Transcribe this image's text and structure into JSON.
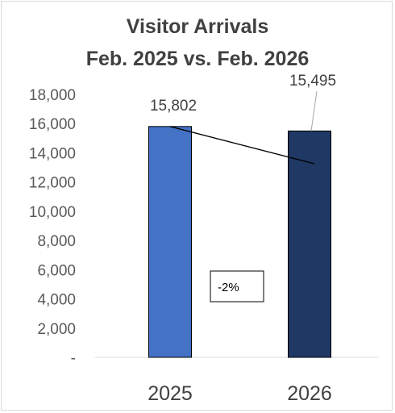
{
  "chart_data": {
    "type": "bar",
    "title": [
      "Visitor Arrivals",
      "Feb. 2025 vs. Feb. 2026"
    ],
    "categories": [
      "2025",
      "2026"
    ],
    "values": [
      15802,
      15495
    ],
    "data_labels": [
      "15,802",
      "15,495"
    ],
    "ylim": [
      0,
      18000
    ],
    "yticks": [
      0,
      2000,
      4000,
      6000,
      8000,
      10000,
      12000,
      14000,
      16000,
      18000
    ],
    "ytick_labels": [
      "-",
      "2,000",
      "4,000",
      "6,000",
      "8,000",
      "10,000",
      "12,000",
      "14,000",
      "16,000",
      "18,000"
    ],
    "bar_colors": [
      "#4472c4",
      "#1f3864"
    ],
    "bar_border": "#000000",
    "grid": false,
    "legend": "none",
    "annotation": "-2%",
    "trend_line": {
      "from_value": 15802,
      "to_value": 13250
    }
  }
}
